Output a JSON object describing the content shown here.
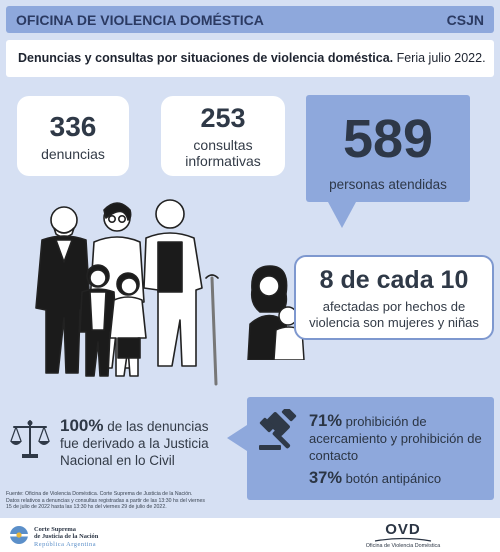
{
  "header": {
    "title": "OFICINA DE VIOLENCIA DOMÉSTICA",
    "org": "CSJN"
  },
  "subtitle": {
    "bold": "Denuncias y consultas por situaciones de violencia doméstica.",
    "rest": " Feria julio 2022."
  },
  "stats": {
    "denuncias": {
      "value": "336",
      "label": "denuncias"
    },
    "consultas": {
      "value": "253",
      "label_line1": "consultas",
      "label_line2": "informativas"
    },
    "personas": {
      "value": "589",
      "label": "personas atendidas"
    }
  },
  "women": {
    "value": "8 de cada 10",
    "line1": "afectadas por hechos de",
    "line2": "violencia son mujeres y niñas"
  },
  "derivado": {
    "pct": "100%",
    "line1": " de las denuncias",
    "line2": "fue derivado a la Justicia",
    "line3": "Nacional en lo Civil"
  },
  "medidas": {
    "pct1": "71%",
    "text1a": " prohibición de",
    "text1b": "acercamiento y prohibición de",
    "text1c": "contacto",
    "pct2": "37%",
    "text2": " botón antipánico"
  },
  "fuente": {
    "line1": "Fuente: Oficina de Violencia Doméstica. Corte Suprema de Justicia de la Nación.",
    "line2": "Datos relativos a denuncias y consultas registradas a partir de las 13:30 hs del viernes",
    "line3": "15 de julio de 2022  hasta las 13:30 hs del viernes 29 de julio de 2022."
  },
  "footer": {
    "csjn_line1": "Corte Suprema",
    "csjn_line2": "de Justicia de la Nación",
    "csjn_line3": "República Argentina",
    "ovd_mark": "OVD",
    "ovd_name": "Oficina de Violencia Doméstica"
  },
  "colors": {
    "background": "#d6e0f3",
    "accent": "#8ea8dc",
    "text_dark": "#2f3947"
  }
}
